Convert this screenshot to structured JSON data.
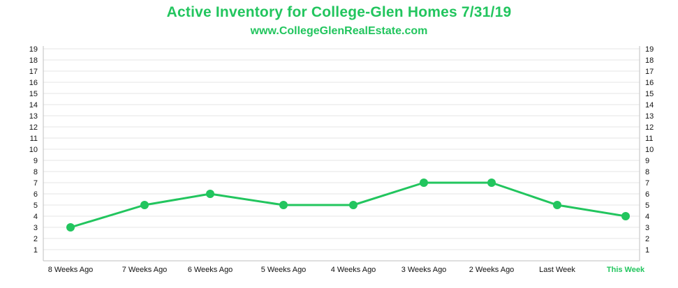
{
  "chart_data": {
    "type": "line",
    "title": "Active Inventory for College-Glen Homes 7/31/19",
    "subtitle": "www.CollegeGlenRealEstate.com",
    "categories": [
      "8 Weeks Ago",
      "7 Weeks Ago",
      "6 Weeks Ago",
      "5 Weeks Ago",
      "4 Weeks Ago",
      "3 Weeks Ago",
      "2 Weeks Ago",
      "Last Week",
      "This Week"
    ],
    "series": [
      {
        "name": "Active Inventory",
        "values": [
          3,
          5,
          6,
          5,
          5,
          7,
          7,
          5,
          4
        ]
      }
    ],
    "xlabel": "",
    "ylabel": "",
    "ylim": [
      0,
      19
    ],
    "yticks": [
      1,
      2,
      3,
      4,
      5,
      6,
      7,
      8,
      9,
      10,
      11,
      12,
      13,
      14,
      15,
      16,
      17,
      18,
      19
    ],
    "grid": true,
    "secondary_y_axis": true,
    "highlight_category": "This Week",
    "colors": {
      "line": "#22c55e",
      "title": "#22c55e",
      "grid": "#e6e6e6",
      "axis": "#bfbfbf"
    }
  }
}
